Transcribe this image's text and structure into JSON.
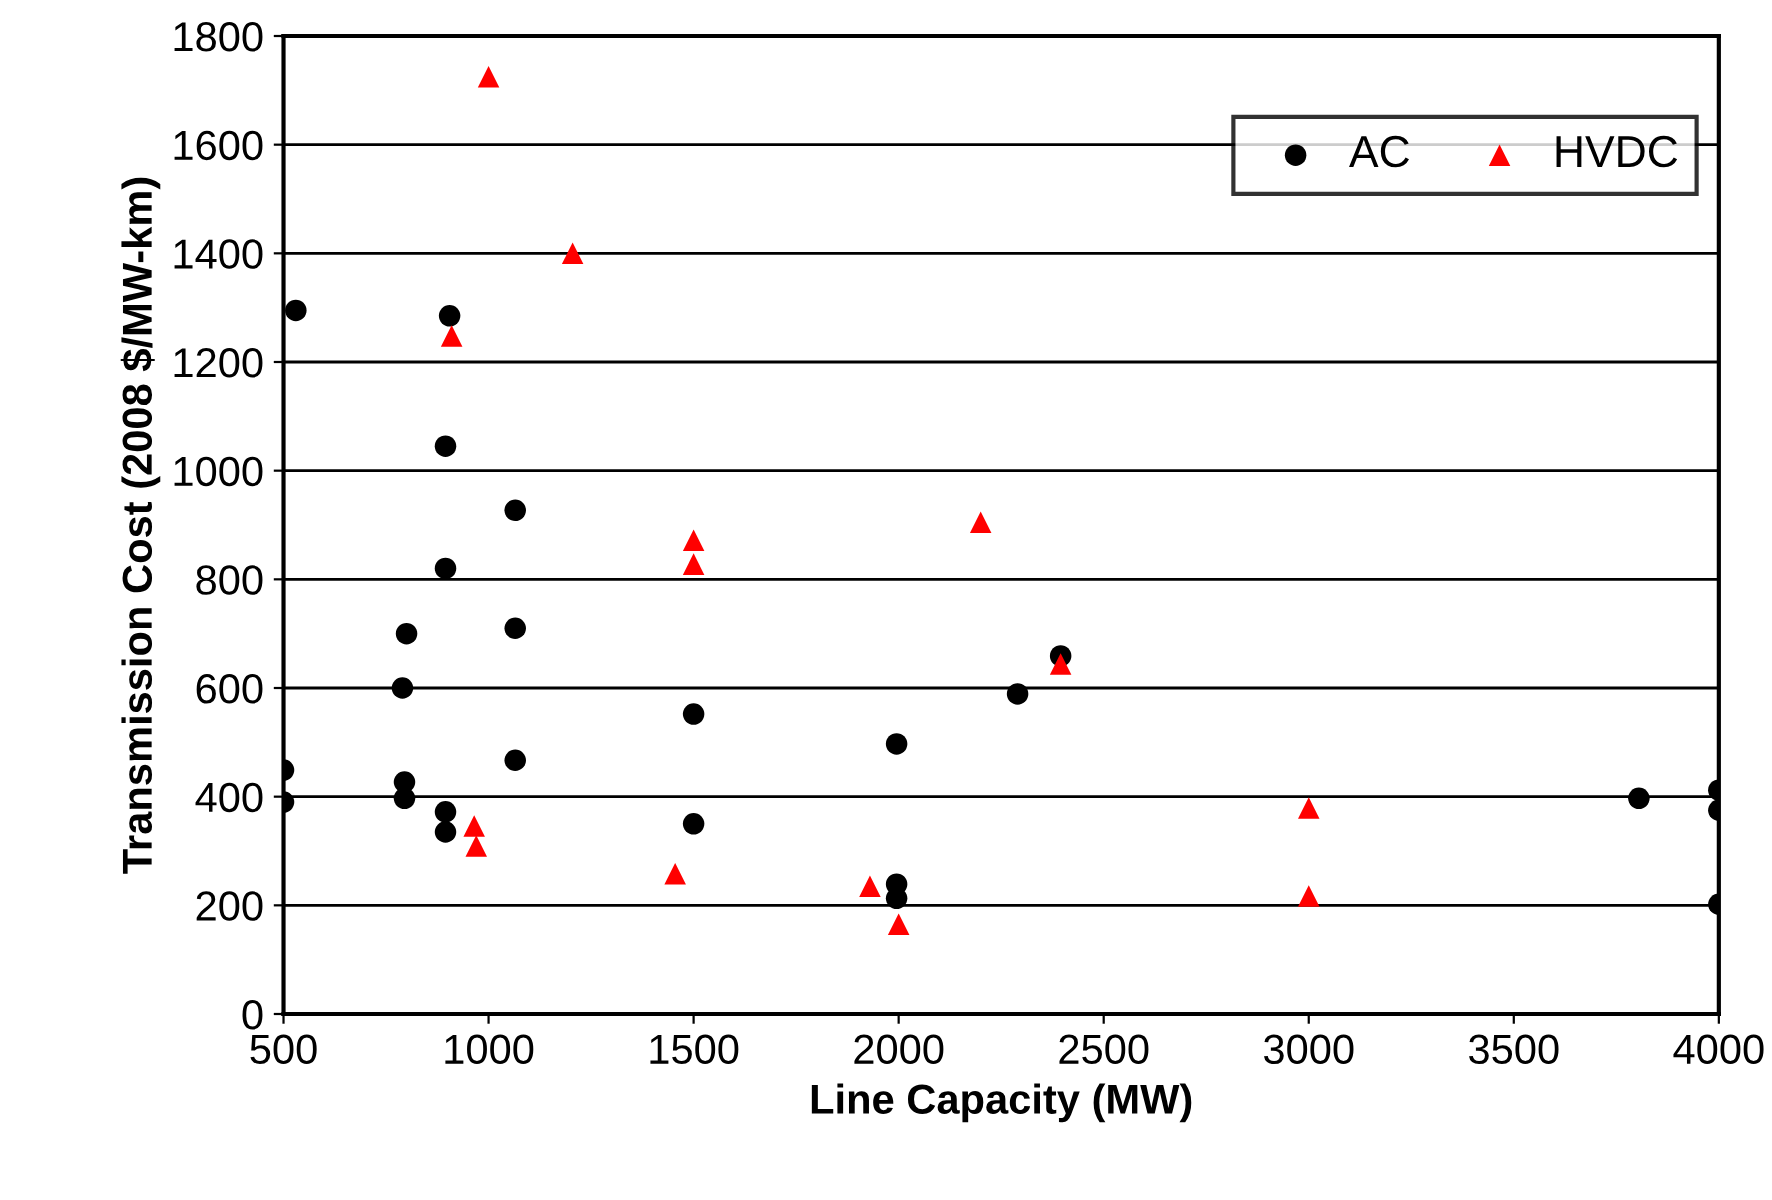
{
  "chart_data": {
    "type": "scatter",
    "xlabel": "Line Capacity (MW)",
    "ylabel": "Transmission Cost (2008 $/MW-km)",
    "xlim": [
      500,
      4000
    ],
    "xticks": [
      500,
      1000,
      1500,
      2000,
      2500,
      3000,
      3500,
      4000
    ],
    "ylim": [
      0,
      1800
    ],
    "yticks": [
      0,
      200,
      400,
      600,
      800,
      1000,
      1200,
      1400,
      1600,
      1800
    ],
    "grid": "y",
    "legend": "top right",
    "series": [
      {
        "name": "AC",
        "color": "#000000",
        "marker": "circle",
        "x": [
          530,
          905,
          895,
          1065,
          895,
          800,
          1065,
          790,
          795,
          795,
          500,
          500,
          1065,
          895,
          895,
          1500,
          1500,
          1995,
          1995,
          1995,
          2395,
          2290,
          3805,
          4000,
          4000,
          4000
        ],
        "values": [
          1295,
          1285,
          1045,
          927,
          820,
          700,
          710,
          600,
          427,
          397,
          449,
          390,
          467,
          372,
          335,
          552,
          350,
          497,
          239,
          213,
          659,
          589,
          397,
          412,
          375,
          202
        ]
      },
      {
        "name": "HVDC",
        "color": "#ff0000",
        "marker": "triangle",
        "x": [
          1000,
          1205,
          910,
          1500,
          1500,
          2200,
          2395,
          965,
          970,
          1455,
          1930,
          2000,
          3000,
          3000
        ],
        "values": [
          1725,
          1400,
          1248,
          872,
          828,
          905,
          644,
          346,
          309,
          258,
          235,
          165,
          379,
          217
        ]
      }
    ]
  }
}
